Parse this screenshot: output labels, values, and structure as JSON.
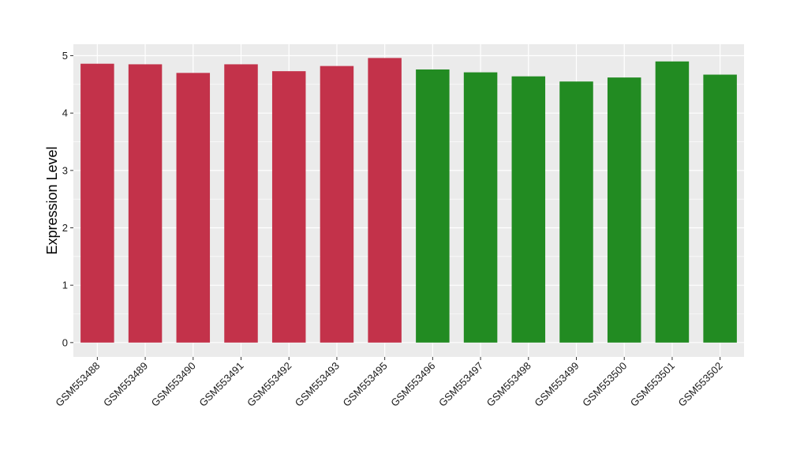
{
  "chart_data": {
    "type": "bar",
    "title": "",
    "xlabel": "",
    "ylabel": "Expression Level",
    "ylim": [
      -0.25,
      5.2
    ],
    "yticks": [
      0,
      1,
      2,
      3,
      4,
      5
    ],
    "grid": true,
    "legend": "none",
    "categories": [
      "GSM553488",
      "GSM553489",
      "GSM553490",
      "GSM553491",
      "GSM553492",
      "GSM553493",
      "GSM553495",
      "GSM553496",
      "GSM553497",
      "GSM553498",
      "GSM553499",
      "GSM553500",
      "GSM553501",
      "GSM553502"
    ],
    "values": [
      4.86,
      4.85,
      4.7,
      4.85,
      4.73,
      4.82,
      4.96,
      4.76,
      4.71,
      4.64,
      4.55,
      4.62,
      4.9,
      4.67
    ],
    "group_colors": [
      "#c3324a",
      "#c3324a",
      "#c3324a",
      "#c3324a",
      "#c3324a",
      "#c3324a",
      "#c3324a",
      "#228b22",
      "#228b22",
      "#228b22",
      "#228b22",
      "#228b22",
      "#228b22",
      "#228b22"
    ],
    "panel_background": "#ebebeb",
    "grid_color": "#ffffff"
  }
}
